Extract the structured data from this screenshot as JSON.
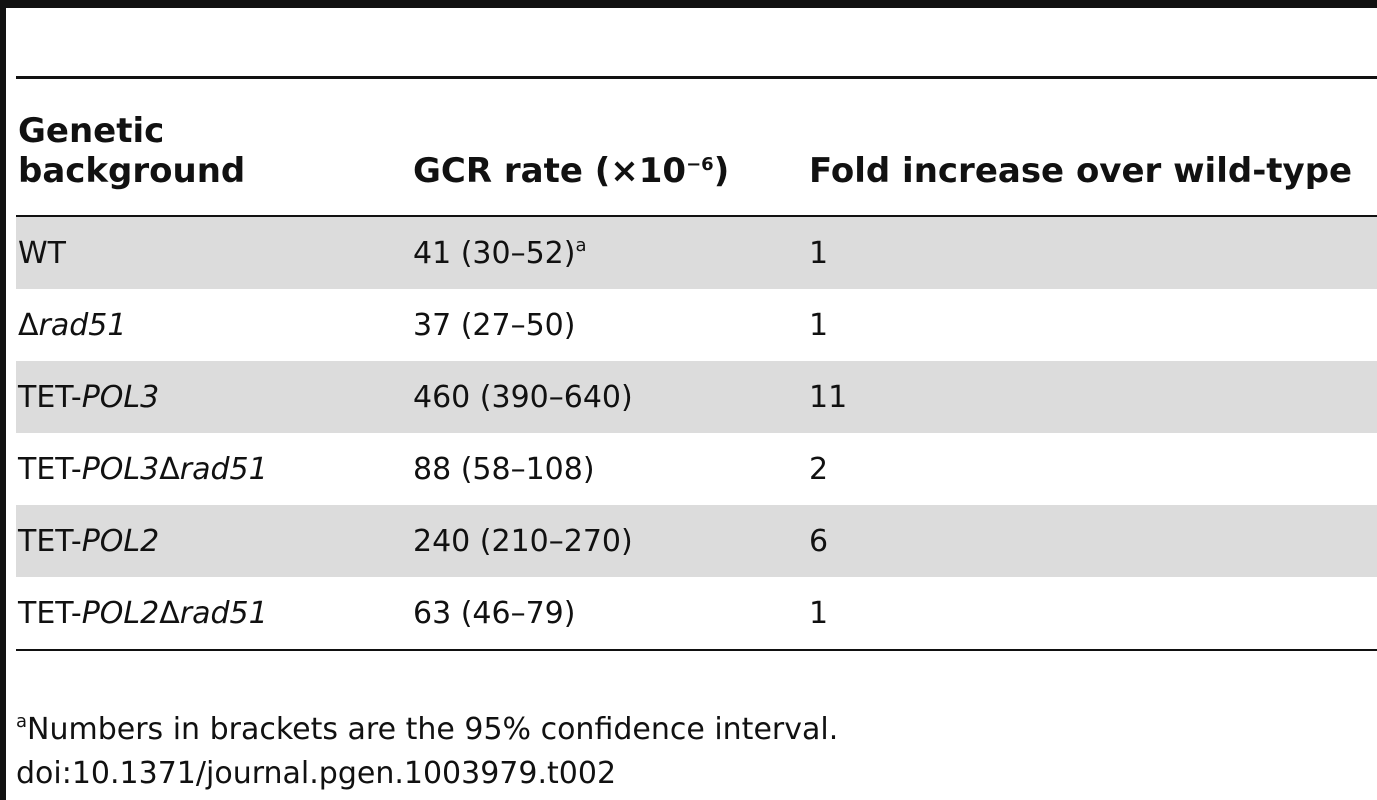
{
  "table": {
    "headers": {
      "col1_line1": "Genetic",
      "col1_line2": "background",
      "col2_main": "GCR rate (×10",
      "col2_sup": "−6",
      "col2_close": ")",
      "col3": "Fold increase over wild-type"
    },
    "rows": [
      {
        "bg_plain": "WT",
        "bg_italic": "",
        "bg_plain2": "",
        "bg_italic2": "",
        "rate": "41 (30–52)",
        "rate_sup": "a",
        "fold": "1",
        "shaded": true
      },
      {
        "bg_plain": "Δ",
        "bg_italic": "rad51",
        "bg_plain2": "",
        "bg_italic2": "",
        "rate": "37 (27–50)",
        "rate_sup": "",
        "fold": "1",
        "shaded": false
      },
      {
        "bg_plain": "TET-",
        "bg_italic": "POL3",
        "bg_plain2": "",
        "bg_italic2": "",
        "rate": "460 (390–640)",
        "rate_sup": "",
        "fold": "11",
        "shaded": true
      },
      {
        "bg_plain": "TET-",
        "bg_italic": "POL3",
        "bg_plain2": "Δ",
        "bg_italic2": "rad51",
        "rate": "88 (58–108)",
        "rate_sup": "",
        "fold": "2",
        "shaded": false
      },
      {
        "bg_plain": "TET-",
        "bg_italic": "POL2",
        "bg_plain2": "",
        "bg_italic2": "",
        "rate": "240 (210–270)",
        "rate_sup": "",
        "fold": "6",
        "shaded": true
      },
      {
        "bg_plain": "TET-",
        "bg_italic": "POL2",
        "bg_plain2": "Δ",
        "bg_italic2": "rad51",
        "rate": "63 (46–79)",
        "rate_sup": "",
        "fold": "1",
        "shaded": false
      }
    ]
  },
  "footnote": {
    "marker": "a",
    "text": "Numbers in brackets are the 95% confidence interval.",
    "doi": "doi:10.1371/journal.pgen.1003979.t002"
  }
}
